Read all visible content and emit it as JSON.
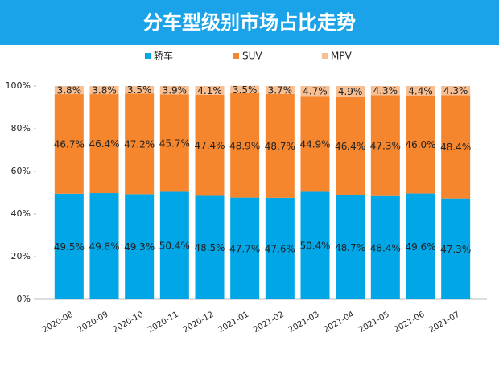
{
  "chart_data": {
    "type": "stacked_bar",
    "title": "分车型级别市场占比走势",
    "categories": [
      "2020-08",
      "2020-09",
      "2020-10",
      "2020-11",
      "2020-12",
      "2021-01",
      "2021-02",
      "2021-03",
      "2021-04",
      "2021-05",
      "2021-06",
      "2021-07"
    ],
    "series": [
      {
        "name": "轿车",
        "color": "#00a6e6",
        "values": [
          49.5,
          49.8,
          49.3,
          50.4,
          48.5,
          47.7,
          47.6,
          50.4,
          48.7,
          48.4,
          49.6,
          47.3
        ],
        "value_labels": [
          "49.5%",
          "49.8%",
          "49.3%",
          "50.4%",
          "48.5%",
          "47.7%",
          "47.6%",
          "50.4%",
          "48.7%",
          "48.4%",
          "49.6%",
          "47.3%"
        ]
      },
      {
        "name": "SUV",
        "color": "#f5862e",
        "values": [
          46.7,
          46.4,
          47.2,
          45.7,
          47.4,
          48.9,
          48.7,
          44.9,
          46.4,
          47.3,
          46.0,
          48.4
        ],
        "value_labels": [
          "46.7%",
          "46.4%",
          "47.2%",
          "45.7%",
          "47.4%",
          "48.9%",
          "48.7%",
          "44.9%",
          "46.4%",
          "47.3%",
          "46.0%",
          "48.4%"
        ]
      },
      {
        "name": "MPV",
        "color": "#f8bf93",
        "values": [
          3.8,
          3.8,
          3.5,
          3.9,
          4.1,
          3.5,
          3.7,
          4.7,
          4.9,
          4.3,
          4.4,
          4.3
        ],
        "value_labels": [
          "3.8%",
          "3.8%",
          "3.5%",
          "3.9%",
          "4.1%",
          "3.5%",
          "3.7%",
          "4.7%",
          "4.9%",
          "4.3%",
          "4.4%",
          "4.3%"
        ]
      }
    ],
    "ylim": [
      0,
      100
    ],
    "yticks": [
      {
        "value": 0,
        "label": "0%"
      },
      {
        "value": 20,
        "label": "20%"
      },
      {
        "value": 40,
        "label": "40%"
      },
      {
        "value": 60,
        "label": "60%"
      },
      {
        "value": 80,
        "label": "80%"
      },
      {
        "value": 100,
        "label": "100%"
      }
    ],
    "legend": "top",
    "grid": false
  }
}
